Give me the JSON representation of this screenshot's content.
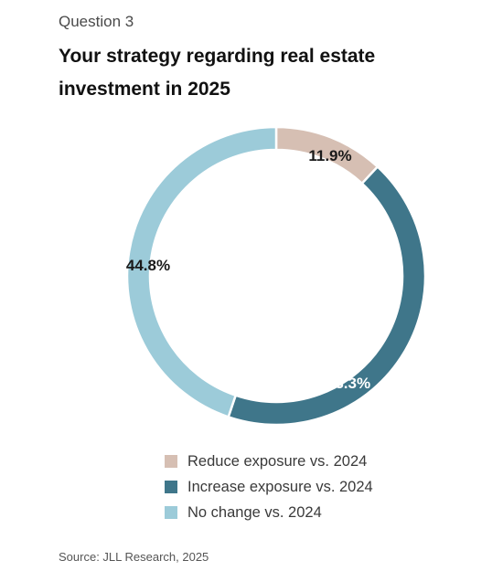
{
  "header": {
    "question": "Question 3",
    "title": "Your strategy regarding real estate investment in 2025"
  },
  "chart_data": {
    "type": "pie",
    "variant": "donut",
    "title": "Your strategy regarding real estate investment in 2025",
    "categories": [
      "Reduce exposure vs. 2024",
      "Increase exposure vs. 2024",
      "No change vs. 2024"
    ],
    "values": [
      11.9,
      43.3,
      44.8
    ],
    "unit": "%",
    "data_labels": [
      "11.9%",
      "43.3%",
      "44.8%"
    ],
    "colors": [
      "#d6bfb3",
      "#3f768a",
      "#9ccbd9"
    ],
    "label_colors": [
      "#1a1a1a",
      "#ffffff",
      "#1a1a1a"
    ],
    "legend_position": "bottom",
    "start": "top",
    "direction": "clockwise"
  },
  "footer": {
    "source": "Source: JLL Research, 2025"
  }
}
